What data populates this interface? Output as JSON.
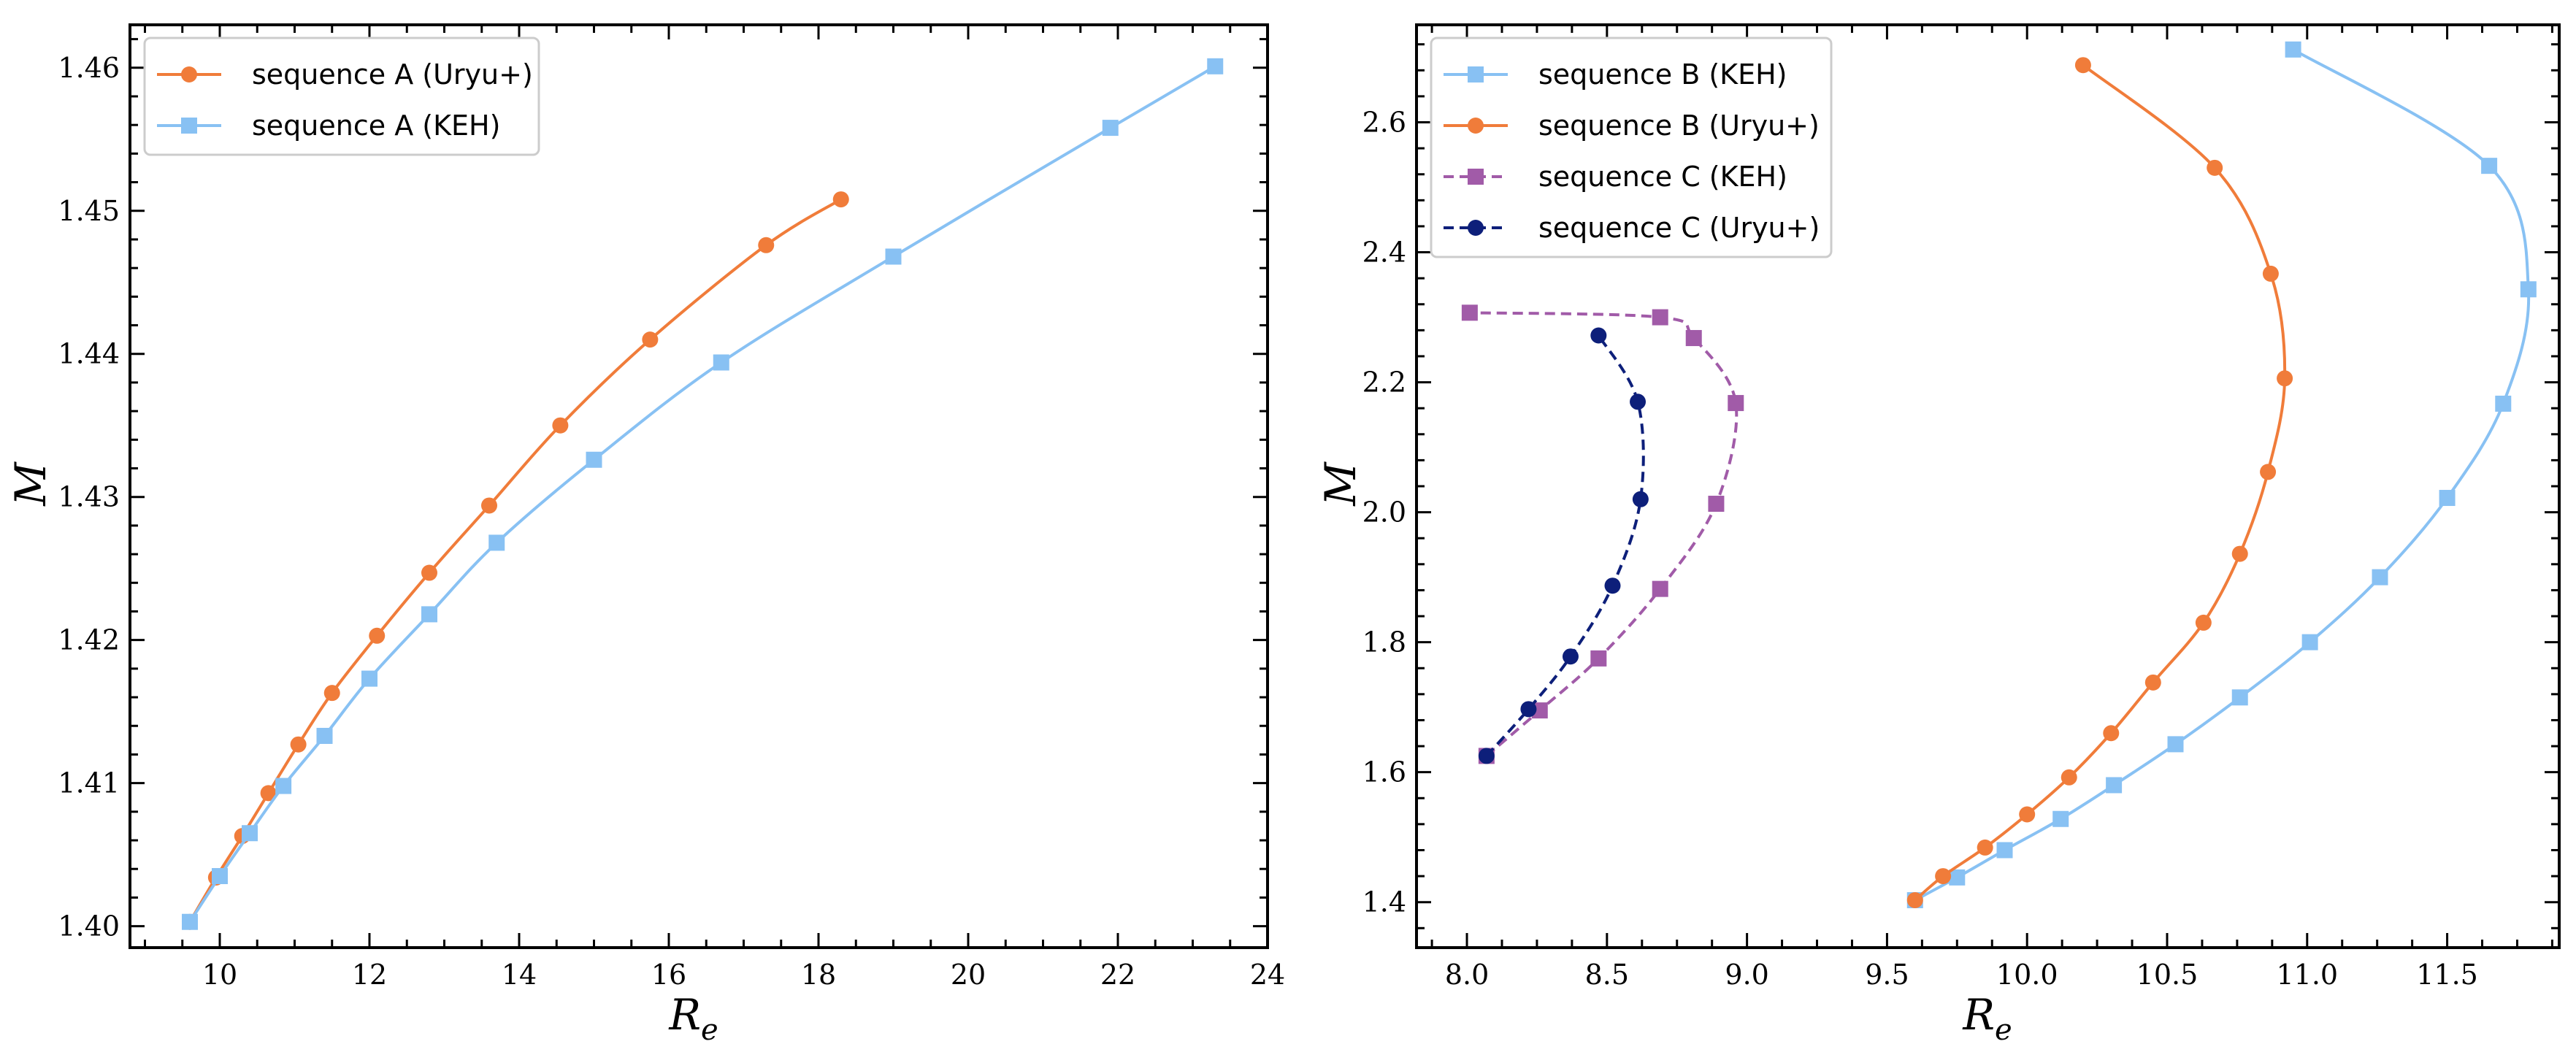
{
  "chart_data": [
    {
      "type": "line",
      "xlabel_main": "R",
      "xlabel_sub": "e",
      "ylabel": "M",
      "xlim": [
        8.8,
        24
      ],
      "ylim": [
        1.3985,
        1.463
      ],
      "xticks": [
        10,
        12,
        14,
        16,
        18,
        20,
        22,
        24
      ],
      "xtick_labels": [
        "10",
        "12",
        "14",
        "16",
        "18",
        "20",
        "22",
        "24"
      ],
      "yticks": [
        1.4,
        1.41,
        1.42,
        1.43,
        1.44,
        1.45,
        1.46
      ],
      "ytick_labels": [
        "1.40",
        "1.41",
        "1.42",
        "1.43",
        "1.44",
        "1.45",
        "1.46"
      ],
      "legend": "top-left",
      "series": [
        {
          "name": "sequence A (Uryu+)",
          "color": "#f07c3a",
          "marker": "circle",
          "dashed": false,
          "x": [
            9.6,
            9.95,
            10.3,
            10.65,
            11.05,
            11.5,
            12.1,
            12.8,
            13.6,
            14.55,
            15.75,
            17.3,
            18.3
          ],
          "y": [
            1.4003,
            1.4034,
            1.4063,
            1.4093,
            1.4127,
            1.4163,
            1.4203,
            1.4247,
            1.4294,
            1.435,
            1.441,
            1.4476,
            1.4508
          ]
        },
        {
          "name": "sequence A (KEH)",
          "color": "#88c1f3",
          "marker": "square",
          "dashed": false,
          "x": [
            9.6,
            10.0,
            10.4,
            10.85,
            11.4,
            12.0,
            12.8,
            13.7,
            15.0,
            16.7,
            19.0,
            21.9,
            23.3
          ],
          "y": [
            1.4003,
            1.4035,
            1.4065,
            1.4098,
            1.4133,
            1.4173,
            1.4218,
            1.4268,
            1.4326,
            1.4394,
            1.4468,
            1.4558,
            1.4601
          ]
        }
      ]
    },
    {
      "type": "line",
      "xlabel_main": "R",
      "xlabel_sub": "e",
      "ylabel": "M",
      "xlim": [
        7.82,
        11.9
      ],
      "ylim": [
        1.33,
        2.75
      ],
      "xticks": [
        8.0,
        8.5,
        9.0,
        9.5,
        10.0,
        10.5,
        11.0,
        11.5
      ],
      "xtick_labels": [
        "8.0",
        "8.5",
        "9.0",
        "9.5",
        "10.0",
        "10.5",
        "11.0",
        "11.5"
      ],
      "yticks": [
        1.4,
        1.6,
        1.8,
        2.0,
        2.2,
        2.4,
        2.6
      ],
      "ytick_labels": [
        "1.4",
        "1.6",
        "1.8",
        "2.0",
        "2.2",
        "2.4",
        "2.6"
      ],
      "legend": "top-left",
      "series": [
        {
          "name": "sequence B (KEH)",
          "color": "#88c1f3",
          "marker": "square",
          "dashed": false,
          "x": [
            9.6,
            9.75,
            9.92,
            10.12,
            10.31,
            10.53,
            10.76,
            11.01,
            11.26,
            11.5,
            11.7,
            11.79,
            11.65,
            10.95
          ],
          "y": [
            1.403,
            1.438,
            1.48,
            1.528,
            1.58,
            1.643,
            1.715,
            1.8,
            1.9,
            2.022,
            2.167,
            2.343,
            2.533,
            2.712
          ]
        },
        {
          "name": "sequence B (Uryu+)",
          "color": "#f07c3a",
          "marker": "circle",
          "dashed": false,
          "x": [
            9.6,
            9.7,
            9.85,
            10.0,
            10.15,
            10.3,
            10.45,
            10.63,
            10.76,
            10.86,
            10.92,
            10.87,
            10.67,
            10.2
          ],
          "y": [
            1.403,
            1.44,
            1.484,
            1.535,
            1.592,
            1.66,
            1.738,
            1.83,
            1.936,
            2.062,
            2.206,
            2.367,
            2.53,
            2.688
          ]
        },
        {
          "name": "sequence C (KEH)",
          "color": "#a15ba8",
          "marker": "square",
          "dashed": true,
          "x": [
            8.07,
            8.26,
            8.47,
            8.69,
            8.89,
            8.96,
            8.81,
            8.69,
            8.01
          ],
          "y": [
            1.625,
            1.695,
            1.775,
            1.882,
            2.013,
            2.168,
            2.268,
            2.3,
            2.307
          ]
        },
        {
          "name": "sequence C (Uryu+)",
          "color": "#0d1f7a",
          "marker": "circle",
          "dashed": true,
          "x": [
            8.07,
            8.22,
            8.37,
            8.52,
            8.62,
            8.61,
            8.47
          ],
          "y": [
            1.625,
            1.697,
            1.778,
            1.887,
            2.02,
            2.17,
            2.272
          ]
        }
      ]
    }
  ]
}
